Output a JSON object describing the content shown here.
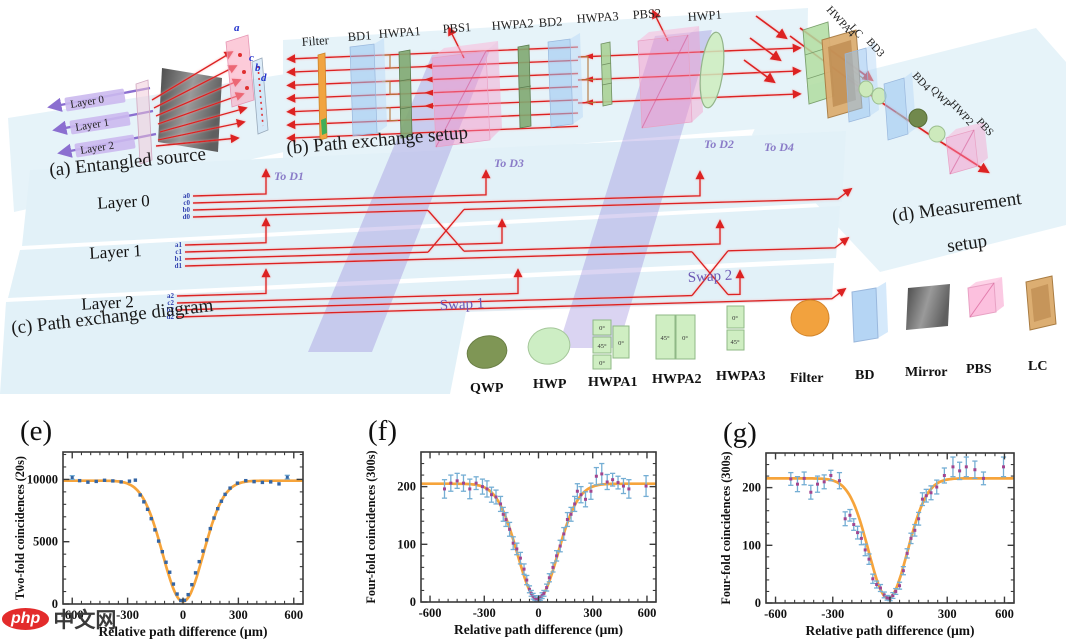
{
  "watermark": {
    "logo": "php",
    "site": "中文网"
  },
  "sections": {
    "a_label": "(a) Entangled source",
    "b_label": "(b) Path exchange setup",
    "c_label": "(c) Path exchange diagram",
    "d_label_line1": "(d) Measurement",
    "d_label_line2": "setup"
  },
  "source_a": {
    "layers": [
      "Layer 0",
      "Layer 1",
      "Layer 2"
    ],
    "ports": [
      "a",
      "c",
      "b",
      "d"
    ]
  },
  "setup_b": {
    "components": [
      "Filter",
      "BD1",
      "HWPA1",
      "PBS1",
      "HWPA2",
      "BD2",
      "HWPA3",
      "PBS2",
      "HWP1"
    ]
  },
  "setup_d": {
    "components": [
      "HWPA4",
      "LC",
      "BD3",
      "BD4",
      "QWP",
      "HWP2",
      "PBS"
    ]
  },
  "diagram_c": {
    "layer_labels": [
      "Layer 0",
      "Layer 1",
      "Layer 2"
    ],
    "ports": [
      "a0",
      "c0",
      "b0",
      "d0",
      "a1",
      "c1",
      "b1",
      "d1",
      "a2",
      "c2",
      "b2",
      "d2"
    ],
    "routes": [
      "To D1",
      "To D3",
      "To D2",
      "To D4"
    ],
    "swaps": [
      "Swap 1",
      "Swap 2"
    ]
  },
  "legend": {
    "items": [
      {
        "label": "QWP"
      },
      {
        "label": "HWP"
      },
      {
        "label": "HWPA1",
        "cells": [
          "0°",
          "45°",
          "0°",
          "0°"
        ]
      },
      {
        "label": "HWPA2",
        "cells": [
          "45°",
          "0°"
        ]
      },
      {
        "label": "HWPA3",
        "cells": [
          "0°",
          "45°"
        ]
      },
      {
        "label": "Filter"
      },
      {
        "label": "BD"
      },
      {
        "label": "Mirror"
      },
      {
        "label": "PBS"
      },
      {
        "label": "LC"
      }
    ]
  },
  "chart_data": [
    {
      "type": "scatter",
      "panel": "(e)",
      "xlabel": "Relative path difference (μm)",
      "ylabel": "Two-fold coincidences (20s)",
      "xlim": [
        -650,
        650
      ],
      "ylim": [
        0,
        12200
      ],
      "xticks": {
        "major": 300,
        "minor": 50,
        "labels": [
          -600,
          -300,
          0,
          300,
          600
        ]
      },
      "yticks": {
        "major": 5000,
        "minor": 1000,
        "labels": [
          0,
          5000,
          10000
        ]
      },
      "legend_position": "none",
      "grid": false,
      "fit": {
        "baseline": 9900,
        "depth": 9700,
        "sigma": 110,
        "center": 0
      },
      "colors": {
        "fit": "#f6a43b",
        "point": "#3465a4",
        "error": "#74aed4",
        "marker": "#3465a4"
      },
      "points": [
        [
          -600,
          10150,
          150
        ],
        [
          -560,
          9900
        ],
        [
          -515,
          9780
        ],
        [
          -470,
          9840
        ],
        [
          -425,
          9930
        ],
        [
          -380,
          9880
        ],
        [
          -335,
          9800
        ],
        [
          -290,
          9860
        ],
        [
          -258,
          9940
        ],
        [
          -232,
          8750
        ],
        [
          -212,
          8200
        ],
        [
          -192,
          7600
        ],
        [
          -172,
          6850
        ],
        [
          -152,
          5950
        ],
        [
          -132,
          5050
        ],
        [
          -112,
          4200
        ],
        [
          -92,
          3350
        ],
        [
          -72,
          2550
        ],
        [
          -52,
          1600
        ],
        [
          -32,
          800
        ],
        [
          -12,
          280
        ],
        [
          8,
          300
        ],
        [
          28,
          750
        ],
        [
          48,
          1550
        ],
        [
          68,
          2500
        ],
        [
          88,
          3400
        ],
        [
          108,
          4250
        ],
        [
          128,
          5150
        ],
        [
          148,
          6050
        ],
        [
          168,
          6900
        ],
        [
          188,
          7650
        ],
        [
          208,
          8250
        ],
        [
          228,
          8800
        ],
        [
          255,
          9300
        ],
        [
          295,
          9700
        ],
        [
          340,
          9900
        ],
        [
          385,
          9820
        ],
        [
          430,
          9760
        ],
        [
          475,
          9800
        ],
        [
          520,
          9640
        ],
        [
          565,
          10180,
          150
        ]
      ]
    },
    {
      "type": "scatter",
      "panel": "(f)",
      "xlabel": "Relative path difference (μm)",
      "ylabel": "Four-fold coincidences (300s)",
      "xlim": [
        -650,
        650
      ],
      "ylim": [
        0,
        260
      ],
      "xticks": {
        "major": 300,
        "minor": 50,
        "labels": [
          -600,
          -300,
          0,
          300,
          600
        ]
      },
      "yticks": {
        "major": 100,
        "minor": 20,
        "labels": [
          0,
          100,
          200
        ]
      },
      "legend_position": "none",
      "grid": false,
      "fit": {
        "baseline": 205,
        "depth": 200,
        "sigma": 112,
        "center": -5
      },
      "colors": {
        "fit": "#f6a43b",
        "point": "#a2458f",
        "error": "#74aed4",
        "marker": "#a2458f"
      },
      "points": [
        [
          -520,
          196,
          16
        ],
        [
          -485,
          206,
          14
        ],
        [
          -450,
          210,
          13
        ],
        [
          -415,
          206,
          14
        ],
        [
          -380,
          196,
          17
        ],
        [
          -345,
          206,
          11
        ],
        [
          -310,
          200,
          13
        ],
        [
          -285,
          196,
          14
        ],
        [
          -260,
          186,
          13
        ],
        [
          -235,
          182,
          12
        ],
        [
          -210,
          170,
          13
        ],
        [
          -195,
          152,
          12
        ],
        [
          -180,
          143,
          12
        ],
        [
          -160,
          126,
          12
        ],
        [
          -140,
          102,
          11
        ],
        [
          -120,
          92,
          10
        ],
        [
          -100,
          76,
          10
        ],
        [
          -80,
          57,
          9
        ],
        [
          -65,
          38,
          8
        ],
        [
          -50,
          22,
          6
        ],
        [
          -40,
          15,
          5
        ],
        [
          -30,
          10,
          5
        ],
        [
          -20,
          7,
          4
        ],
        [
          -10,
          5,
          3
        ],
        [
          0,
          5,
          3
        ],
        [
          10,
          7,
          4
        ],
        [
          20,
          11,
          5
        ],
        [
          30,
          15,
          5
        ],
        [
          45,
          25,
          6
        ],
        [
          60,
          42,
          7
        ],
        [
          80,
          60,
          8
        ],
        [
          100,
          80,
          9
        ],
        [
          120,
          97,
          10
        ],
        [
          140,
          118,
          11
        ],
        [
          160,
          143,
          12
        ],
        [
          180,
          152,
          12
        ],
        [
          200,
          170,
          13
        ],
        [
          215,
          192,
          13
        ],
        [
          235,
          186,
          14
        ],
        [
          260,
          178,
          13
        ],
        [
          290,
          192,
          14
        ],
        [
          320,
          218,
          15
        ],
        [
          350,
          222,
          18
        ],
        [
          380,
          208,
          13
        ],
        [
          410,
          212,
          11
        ],
        [
          440,
          207,
          11
        ],
        [
          470,
          201,
          13
        ],
        [
          500,
          196,
          16
        ],
        [
          595,
          201,
          18
        ]
      ]
    },
    {
      "type": "scatter",
      "panel": "(g)",
      "xlabel": "Relative path difference (μm)",
      "ylabel": "Four-fold coincidences (300s)",
      "xlim": [
        -650,
        650
      ],
      "ylim": [
        0,
        260
      ],
      "xticks": {
        "major": 300,
        "minor": 50,
        "labels": [
          -600,
          -300,
          0,
          300,
          600
        ]
      },
      "yticks": {
        "major": 100,
        "minor": 20,
        "labels": [
          0,
          100,
          200
        ]
      },
      "legend_position": "none",
      "grid": false,
      "fit": {
        "baseline": 216,
        "depth": 208,
        "sigma": 102,
        "center": -10
      },
      "colors": {
        "fit": "#f6a43b",
        "point": "#a2458f",
        "error": "#74aed4",
        "marker": "#a2458f"
      },
      "points": [
        [
          -520,
          215,
          11
        ],
        [
          -485,
          206,
          13
        ],
        [
          -450,
          216,
          11
        ],
        [
          -415,
          192,
          12
        ],
        [
          -380,
          206,
          14
        ],
        [
          -345,
          210,
          12
        ],
        [
          -310,
          221,
          9
        ],
        [
          -265,
          212,
          14
        ],
        [
          -235,
          146,
          12
        ],
        [
          -210,
          152,
          10
        ],
        [
          -190,
          136,
          10
        ],
        [
          -170,
          122,
          11
        ],
        [
          -150,
          112,
          11
        ],
        [
          -130,
          92,
          10
        ],
        [
          -110,
          76,
          9
        ],
        [
          -90,
          42,
          8
        ],
        [
          -70,
          32,
          6
        ],
        [
          -50,
          26,
          6
        ],
        [
          -30,
          14,
          5
        ],
        [
          -15,
          9,
          4
        ],
        [
          0,
          8,
          4
        ],
        [
          15,
          13,
          5
        ],
        [
          30,
          20,
          5
        ],
        [
          50,
          30,
          6
        ],
        [
          70,
          56,
          7
        ],
        [
          90,
          86,
          8
        ],
        [
          110,
          112,
          9
        ],
        [
          130,
          126,
          10
        ],
        [
          150,
          146,
          11
        ],
        [
          170,
          180,
          11
        ],
        [
          190,
          186,
          11
        ],
        [
          215,
          191,
          12
        ],
        [
          245,
          201,
          12
        ],
        [
          285,
          221,
          13
        ],
        [
          330,
          236,
          17
        ],
        [
          365,
          229,
          15
        ],
        [
          400,
          236,
          17
        ],
        [
          445,
          231,
          15
        ],
        [
          490,
          216,
          11
        ],
        [
          595,
          236,
          17
        ]
      ]
    }
  ]
}
